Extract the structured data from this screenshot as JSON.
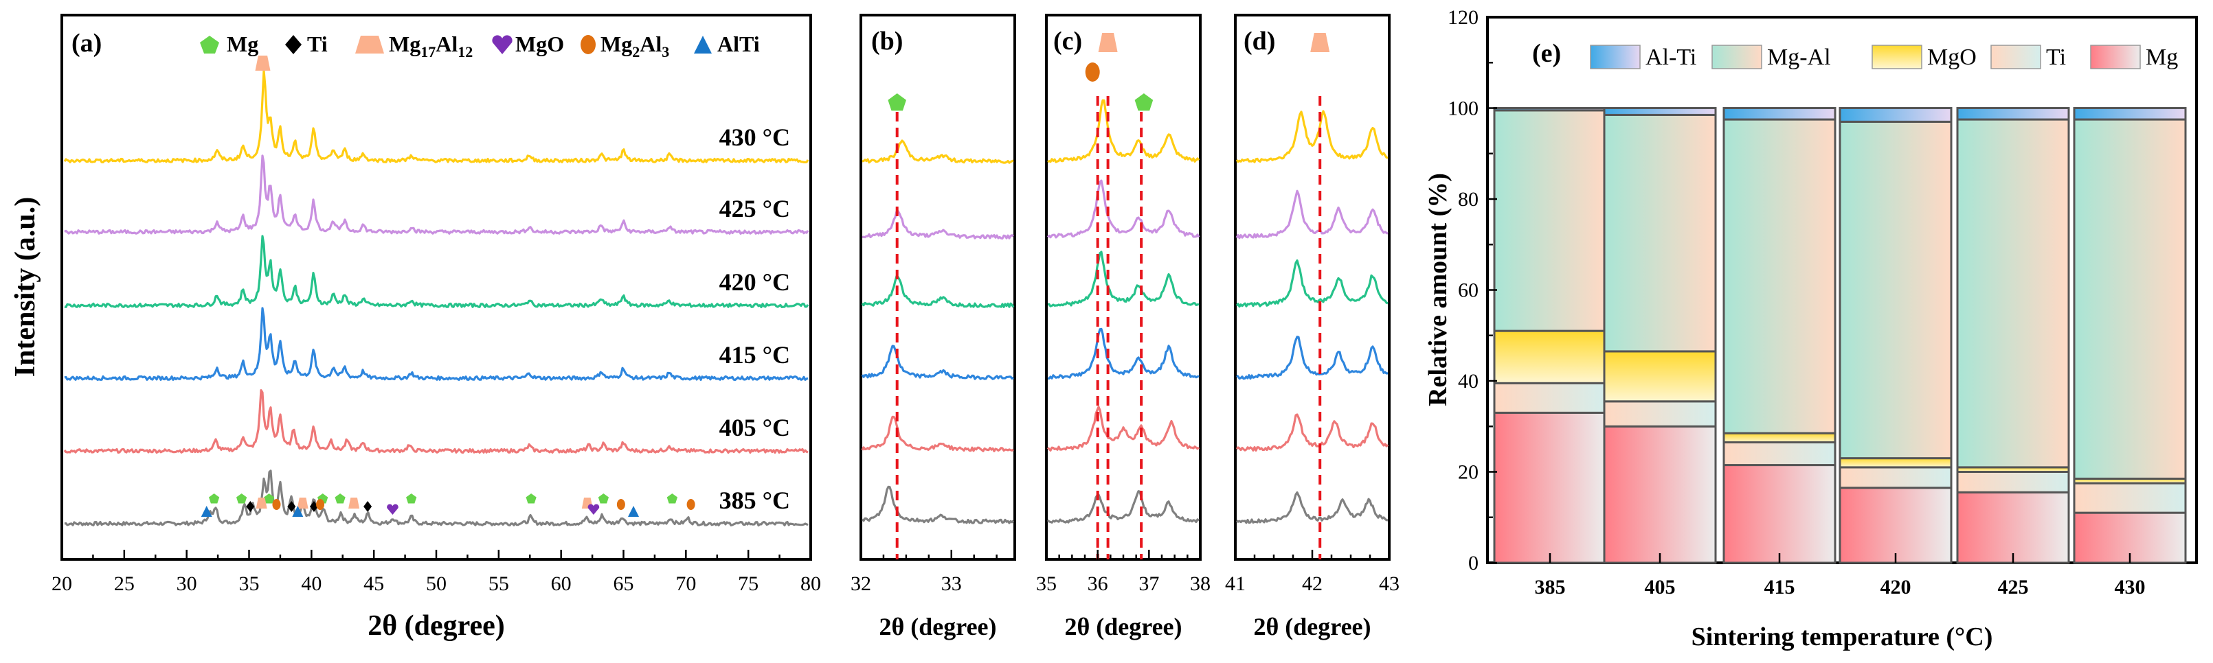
{
  "colors": {
    "series": [
      "#808080",
      "#EE7777",
      "#2E86DE",
      "#25C28A",
      "#C98FE0",
      "#FFCC11"
    ],
    "peak_line": "#E8141B",
    "mg_marker": "#66D44A",
    "ti_marker": "#000000",
    "mg17al12_marker": "#FBB08C",
    "mgo_marker": "#7B2FB5",
    "mg2al3_marker": "#E07010",
    "alti_marker": "#1876C8"
  },
  "phase_legend": {
    "mg": "Mg",
    "ti": "Ti",
    "mg17al12_base": "Mg",
    "mg17al12_sub1": "17",
    "mg17al12_mid": "Al",
    "mg17al12_sub2": "12",
    "mgo": "MgO",
    "mg2al3_base": "Mg",
    "mg2al3_sub1": "2",
    "mg2al3_mid": "Al",
    "mg2al3_sub2": "3",
    "alti": "AlTi"
  },
  "chart_data": [
    {
      "panel": "(a)",
      "type": "line",
      "xlabel": "2θ (degree)",
      "ylabel": "Intensity (a.u.)",
      "xlim": [
        20,
        80
      ],
      "xticks": [
        "20",
        "25",
        "30",
        "35",
        "40",
        "45",
        "50",
        "55",
        "60",
        "65",
        "70",
        "75",
        "80"
      ],
      "series": [
        {
          "name": "385 °C",
          "peaks": [
            [
              31.7,
              0.15
            ],
            [
              32.2,
              0.22
            ],
            [
              34.5,
              0.28
            ],
            [
              35.2,
              0.25
            ],
            [
              36.1,
              0.55
            ],
            [
              36.6,
              0.72
            ],
            [
              37.4,
              0.55
            ],
            [
              38.3,
              0.35
            ],
            [
              39.2,
              0.25
            ],
            [
              40.1,
              0.35
            ],
            [
              40.9,
              0.2
            ],
            [
              42.3,
              0.15
            ],
            [
              43.4,
              0.12
            ],
            [
              44.5,
              0.15
            ],
            [
              46.5,
              0.08
            ],
            [
              48.0,
              0.1
            ],
            [
              57.6,
              0.1
            ],
            [
              62.1,
              0.08
            ],
            [
              63.4,
              0.12
            ],
            [
              65.0,
              0.1
            ],
            [
              68.9,
              0.08
            ],
            [
              70.3,
              0.08
            ]
          ]
        },
        {
          "name": "405 °C",
          "peaks": [
            [
              32.2,
              0.15
            ],
            [
              34.4,
              0.2
            ],
            [
              35.9,
              0.9
            ],
            [
              36.6,
              0.55
            ],
            [
              37.4,
              0.5
            ],
            [
              38.5,
              0.3
            ],
            [
              40.1,
              0.35
            ],
            [
              41.5,
              0.15
            ],
            [
              42.8,
              0.15
            ],
            [
              44.1,
              0.12
            ],
            [
              47.8,
              0.08
            ],
            [
              57.5,
              0.08
            ],
            [
              62.3,
              0.08
            ],
            [
              63.5,
              0.1
            ],
            [
              65.1,
              0.12
            ],
            [
              68.8,
              0.08
            ]
          ]
        },
        {
          "name": "415 °C",
          "peaks": [
            [
              32.3,
              0.15
            ],
            [
              34.4,
              0.22
            ],
            [
              36.0,
              1.0
            ],
            [
              36.6,
              0.55
            ],
            [
              37.4,
              0.5
            ],
            [
              38.6,
              0.25
            ],
            [
              40.1,
              0.4
            ],
            [
              41.7,
              0.15
            ],
            [
              42.6,
              0.15
            ],
            [
              44.1,
              0.1
            ],
            [
              48.0,
              0.08
            ],
            [
              57.5,
              0.08
            ],
            [
              63.3,
              0.1
            ],
            [
              65.1,
              0.15
            ],
            [
              68.8,
              0.08
            ]
          ]
        },
        {
          "name": "420 °C",
          "peaks": [
            [
              32.3,
              0.15
            ],
            [
              34.4,
              0.22
            ],
            [
              36.0,
              1.0
            ],
            [
              36.6,
              0.55
            ],
            [
              37.4,
              0.5
            ],
            [
              38.6,
              0.25
            ],
            [
              40.1,
              0.45
            ],
            [
              41.7,
              0.15
            ],
            [
              42.6,
              0.15
            ],
            [
              44.1,
              0.1
            ],
            [
              48.0,
              0.08
            ],
            [
              57.5,
              0.08
            ],
            [
              63.3,
              0.1
            ],
            [
              65.1,
              0.15
            ],
            [
              68.8,
              0.08
            ]
          ]
        },
        {
          "name": "425 °C",
          "peaks": [
            [
              32.3,
              0.15
            ],
            [
              34.4,
              0.22
            ],
            [
              36.0,
              1.1
            ],
            [
              36.6,
              0.6
            ],
            [
              37.4,
              0.5
            ],
            [
              38.6,
              0.25
            ],
            [
              40.1,
              0.45
            ],
            [
              41.7,
              0.15
            ],
            [
              42.6,
              0.15
            ],
            [
              44.1,
              0.1
            ],
            [
              48.0,
              0.08
            ],
            [
              57.5,
              0.08
            ],
            [
              63.3,
              0.1
            ],
            [
              65.1,
              0.15
            ],
            [
              68.8,
              0.08
            ]
          ]
        },
        {
          "name": "430 °C",
          "peaks": [
            [
              32.3,
              0.15
            ],
            [
              34.4,
              0.2
            ],
            [
              36.1,
              1.25
            ],
            [
              36.6,
              0.5
            ],
            [
              37.4,
              0.45
            ],
            [
              38.6,
              0.25
            ],
            [
              40.1,
              0.45
            ],
            [
              41.7,
              0.15
            ],
            [
              42.6,
              0.15
            ],
            [
              44.1,
              0.1
            ],
            [
              48.0,
              0.08
            ],
            [
              57.5,
              0.08
            ],
            [
              63.3,
              0.1
            ],
            [
              65.1,
              0.15
            ],
            [
              68.8,
              0.08
            ]
          ]
        }
      ],
      "phase_markers": [
        {
          "phase": "Mg",
          "x": [
            32.2,
            34.4,
            36.6,
            40.9,
            42.3,
            48.0,
            57.6,
            63.4,
            68.9
          ]
        },
        {
          "phase": "Ti",
          "x": [
            35.1,
            38.4,
            40.2,
            44.5
          ]
        },
        {
          "phase": "Mg17Al12",
          "x": [
            36.0,
            39.3,
            43.4,
            62.1
          ]
        },
        {
          "phase": "MgO",
          "x": [
            46.5,
            62.6
          ]
        },
        {
          "phase": "Mg2Al3",
          "x": [
            37.2,
            40.7,
            64.8,
            70.4
          ]
        },
        {
          "phase": "AlTi",
          "x": [
            31.6,
            38.9,
            65.8
          ]
        }
      ],
      "peak_marker": {
        "phase": "Mg17Al12",
        "x": 36.1
      }
    },
    {
      "panel": "(b)",
      "type": "line",
      "xlabel": "2θ (degree)",
      "xlim": [
        32,
        33.7
      ],
      "xticks": [
        "32",
        "33"
      ],
      "dashed_lines": [
        32.4
      ],
      "markers": [
        {
          "phase": "Mg",
          "x": 32.4
        }
      ]
    },
    {
      "panel": "(c)",
      "type": "line",
      "xlabel": "2θ (degree)",
      "xlim": [
        35,
        38
      ],
      "xticks": [
        "35",
        "36",
        "37",
        "38"
      ],
      "dashed_lines": [
        36.0,
        36.2,
        36.85
      ],
      "markers": [
        {
          "phase": "Mg2Al3",
          "x": 35.9
        },
        {
          "phase": "Mg17Al12",
          "x": 36.2
        },
        {
          "phase": "Mg",
          "x": 36.9
        }
      ]
    },
    {
      "panel": "(d)",
      "type": "line",
      "xlabel": "2θ (degree)",
      "xlim": [
        41,
        43
      ],
      "xticks": [
        "41",
        "42",
        "43"
      ],
      "dashed_lines": [
        42.1
      ],
      "markers": [
        {
          "phase": "Mg17Al12",
          "x": 42.1
        }
      ]
    },
    {
      "panel": "(e)",
      "type": "bar",
      "stacked": true,
      "xlabel": "Sintering temperature (°C)",
      "ylabel": "Relative amount (%)",
      "ylim": [
        0,
        120
      ],
      "yticks": [
        "0",
        "20",
        "40",
        "60",
        "80",
        "100",
        "120"
      ],
      "categories": [
        "385",
        "405",
        "415",
        "420",
        "425",
        "430"
      ],
      "legend": [
        "Al-Ti",
        "Mg-Al",
        "MgO",
        "Ti",
        "Mg"
      ],
      "series": [
        {
          "name": "Mg",
          "values": [
            33,
            30,
            21.5,
            16.5,
            15.5,
            11
          ]
        },
        {
          "name": "Ti",
          "values": [
            6.5,
            5.5,
            5,
            4.5,
            4.5,
            6.5
          ]
        },
        {
          "name": "MgO",
          "values": [
            11.5,
            11,
            2,
            2,
            1,
            1
          ]
        },
        {
          "name": "Mg-Al",
          "values": [
            48.5,
            52,
            69,
            74,
            76.5,
            79
          ]
        },
        {
          "name": "Al-Ti",
          "values": [
            0.5,
            1.5,
            2.5,
            3,
            2.5,
            2.5
          ]
        }
      ]
    }
  ]
}
